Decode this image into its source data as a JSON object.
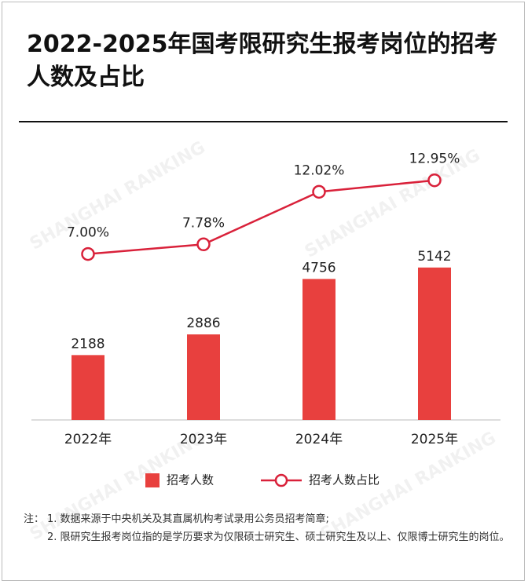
{
  "chart_data": {
    "type": "bar-line",
    "title": "2022-2025年国考限研究生报考岗位的招考人数及占比",
    "categories": [
      "2022年",
      "2023年",
      "2024年",
      "2025年"
    ],
    "series": [
      {
        "name": "招考人数",
        "type": "bar",
        "color": "#e8403e",
        "values": [
          2188,
          2886,
          4756,
          5142
        ]
      },
      {
        "name": "招考人数占比",
        "type": "line",
        "axis": "y2",
        "color": "#d9213a",
        "values": [
          7.0,
          7.78,
          12.02,
          12.95
        ],
        "value_labels": [
          "7.00%",
          "7.78%",
          "12.02%",
          "12.95%"
        ]
      }
    ],
    "ylim": [
      0,
      9400
    ],
    "y2lim": [
      -6.4,
      16.1
    ],
    "watermark": "SHANGHAI RANKING",
    "notes": {
      "label": "注：",
      "items": [
        "1. 数据来源于中央机关及其直属机构考试录用公务员招考简章;",
        "2. 限研究生报考岗位指的是学历要求为仅限硕士研究生、硕士研究生及以上、仅限博士研究生的岗位。"
      ]
    }
  }
}
